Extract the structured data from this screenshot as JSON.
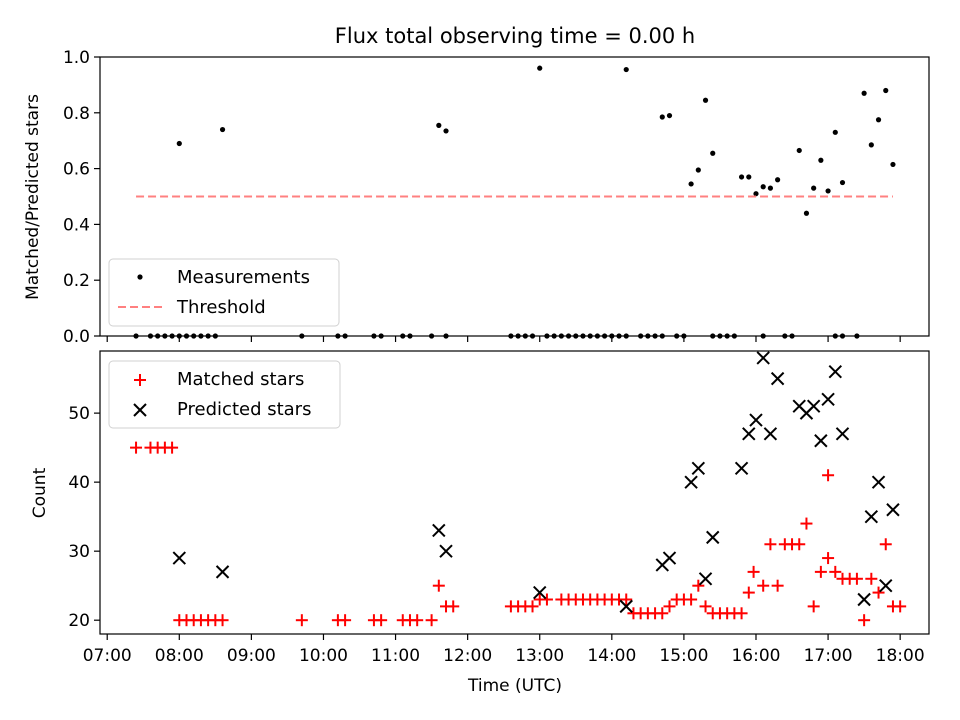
{
  "figure": {
    "title": "Flux total observing time = 0.00 h",
    "xlabel": "Time (UTC)"
  },
  "chart_data": [
    {
      "type": "scatter",
      "ylabel": "Matched/Predicted stars",
      "xlim": [
        "06:54",
        "18:24"
      ],
      "ylim": [
        0,
        1.0
      ],
      "yticks": [
        0.0,
        0.2,
        0.4,
        0.6,
        0.8,
        1.0
      ],
      "ytick_labels": [
        "0.0",
        "0.2",
        "0.4",
        "0.6",
        "0.8",
        "1.0"
      ],
      "legend": {
        "position": "lower-left",
        "entries": [
          "Measurements",
          "Threshold"
        ]
      },
      "series": [
        {
          "name": "Measurements",
          "color": "#000000",
          "marker": "dot",
          "points": [
            [
              "07:24",
              0.0
            ],
            [
              "07:36",
              0.0
            ],
            [
              "07:42",
              0.0
            ],
            [
              "07:48",
              0.0
            ],
            [
              "07:54",
              0.0
            ],
            [
              "08:00",
              0.0
            ],
            [
              "08:06",
              0.0
            ],
            [
              "08:12",
              0.0
            ],
            [
              "08:18",
              0.0
            ],
            [
              "08:24",
              0.0
            ],
            [
              "08:30",
              0.0
            ],
            [
              "09:42",
              0.0
            ],
            [
              "10:12",
              0.0
            ],
            [
              "10:18",
              0.0
            ],
            [
              "10:42",
              0.0
            ],
            [
              "10:48",
              0.0
            ],
            [
              "11:06",
              0.0
            ],
            [
              "11:12",
              0.0
            ],
            [
              "11:30",
              0.0
            ],
            [
              "11:42",
              0.0
            ],
            [
              "12:36",
              0.0
            ],
            [
              "12:42",
              0.0
            ],
            [
              "12:48",
              0.0
            ],
            [
              "12:54",
              0.0
            ],
            [
              "13:06",
              0.0
            ],
            [
              "13:12",
              0.0
            ],
            [
              "13:18",
              0.0
            ],
            [
              "13:24",
              0.0
            ],
            [
              "13:30",
              0.0
            ],
            [
              "13:36",
              0.0
            ],
            [
              "13:42",
              0.0
            ],
            [
              "13:48",
              0.0
            ],
            [
              "13:54",
              0.0
            ],
            [
              "14:00",
              0.0
            ],
            [
              "14:06",
              0.0
            ],
            [
              "14:12",
              0.0
            ],
            [
              "14:24",
              0.0
            ],
            [
              "14:30",
              0.0
            ],
            [
              "14:36",
              0.0
            ],
            [
              "14:42",
              0.0
            ],
            [
              "14:54",
              0.0
            ],
            [
              "15:00",
              0.0
            ],
            [
              "15:24",
              0.0
            ],
            [
              "15:30",
              0.0
            ],
            [
              "15:36",
              0.0
            ],
            [
              "15:42",
              0.0
            ],
            [
              "16:06",
              0.0
            ],
            [
              "16:24",
              0.0
            ],
            [
              "16:30",
              0.0
            ],
            [
              "17:06",
              0.0
            ],
            [
              "17:12",
              0.0
            ],
            [
              "17:24",
              0.0
            ],
            [
              "08:00",
              0.69
            ],
            [
              "08:36",
              0.74
            ],
            [
              "11:36",
              0.755
            ],
            [
              "11:42",
              0.735
            ],
            [
              "13:00",
              0.96
            ],
            [
              "14:12",
              0.955
            ],
            [
              "14:42",
              0.785
            ],
            [
              "14:48",
              0.79
            ],
            [
              "15:06",
              0.545
            ],
            [
              "15:12",
              0.595
            ],
            [
              "15:18",
              0.845
            ],
            [
              "15:24",
              0.655
            ],
            [
              "15:48",
              0.57
            ],
            [
              "15:54",
              0.57
            ],
            [
              "16:00",
              0.51
            ],
            [
              "16:06",
              0.535
            ],
            [
              "16:12",
              0.53
            ],
            [
              "16:18",
              0.56
            ],
            [
              "16:36",
              0.665
            ],
            [
              "16:42",
              0.44
            ],
            [
              "16:48",
              0.53
            ],
            [
              "16:54",
              0.63
            ],
            [
              "17:00",
              0.52
            ],
            [
              "17:06",
              0.73
            ],
            [
              "17:12",
              0.55
            ],
            [
              "17:30",
              0.87
            ],
            [
              "17:36",
              0.685
            ],
            [
              "17:42",
              0.775
            ],
            [
              "17:48",
              0.88
            ],
            [
              "17:54",
              0.615
            ]
          ]
        },
        {
          "name": "Threshold",
          "color": "#ff8080",
          "style": "dashed",
          "points": [
            [
              "07:24",
              0.5
            ],
            [
              "17:54",
              0.5
            ]
          ]
        }
      ]
    },
    {
      "type": "scatter",
      "ylabel": "Count",
      "xlim": [
        "06:54",
        "18:24"
      ],
      "ylim": [
        18,
        59
      ],
      "yticks": [
        20,
        30,
        40,
        50
      ],
      "ytick_labels": [
        "20",
        "30",
        "40",
        "50"
      ],
      "xticks": [
        "07:00",
        "08:00",
        "09:00",
        "10:00",
        "11:00",
        "12:00",
        "13:00",
        "14:00",
        "15:00",
        "16:00",
        "17:00",
        "18:00"
      ],
      "legend": {
        "position": "upper-left",
        "entries": [
          "Matched stars",
          "Predicted stars"
        ]
      },
      "series": [
        {
          "name": "Matched stars",
          "color": "#ff0000",
          "marker": "plus",
          "points": [
            [
              "07:24",
              45
            ],
            [
              "07:36",
              45
            ],
            [
              "07:42",
              45
            ],
            [
              "07:48",
              45
            ],
            [
              "07:54",
              45
            ],
            [
              "08:00",
              20
            ],
            [
              "08:06",
              20
            ],
            [
              "08:12",
              20
            ],
            [
              "08:18",
              20
            ],
            [
              "08:24",
              20
            ],
            [
              "08:30",
              20
            ],
            [
              "08:36",
              20
            ],
            [
              "09:42",
              20
            ],
            [
              "10:12",
              20
            ],
            [
              "10:18",
              20
            ],
            [
              "10:42",
              20
            ],
            [
              "10:48",
              20
            ],
            [
              "11:06",
              20
            ],
            [
              "11:12",
              20
            ],
            [
              "11:18",
              20
            ],
            [
              "11:30",
              20
            ],
            [
              "11:36",
              25
            ],
            [
              "11:42",
              22
            ],
            [
              "11:48",
              22
            ],
            [
              "12:36",
              22
            ],
            [
              "12:42",
              22
            ],
            [
              "12:48",
              22
            ],
            [
              "12:54",
              22
            ],
            [
              "13:00",
              23
            ],
            [
              "13:06",
              23
            ],
            [
              "13:18",
              23
            ],
            [
              "13:24",
              23
            ],
            [
              "13:30",
              23
            ],
            [
              "13:36",
              23
            ],
            [
              "13:42",
              23
            ],
            [
              "13:48",
              23
            ],
            [
              "13:54",
              23
            ],
            [
              "14:00",
              23
            ],
            [
              "14:06",
              23
            ],
            [
              "14:12",
              23
            ],
            [
              "14:18",
              21
            ],
            [
              "14:24",
              21
            ],
            [
              "14:30",
              21
            ],
            [
              "14:36",
              21
            ],
            [
              "14:42",
              21
            ],
            [
              "14:48",
              22
            ],
            [
              "14:54",
              23
            ],
            [
              "15:00",
              23
            ],
            [
              "15:06",
              23
            ],
            [
              "15:12",
              25
            ],
            [
              "15:18",
              22
            ],
            [
              "15:24",
              21
            ],
            [
              "15:30",
              21
            ],
            [
              "15:36",
              21
            ],
            [
              "15:42",
              21
            ],
            [
              "15:48",
              21
            ],
            [
              "15:54",
              24
            ],
            [
              "15:58",
              27
            ],
            [
              "16:06",
              25
            ],
            [
              "16:12",
              31
            ],
            [
              "16:18",
              25
            ],
            [
              "16:24",
              31
            ],
            [
              "16:30",
              31
            ],
            [
              "16:36",
              31
            ],
            [
              "16:42",
              34
            ],
            [
              "16:48",
              22
            ],
            [
              "16:54",
              27
            ],
            [
              "17:00",
              29
            ],
            [
              "17:06",
              27
            ],
            [
              "17:00",
              41
            ],
            [
              "17:12",
              26
            ],
            [
              "17:18",
              26
            ],
            [
              "17:24",
              26
            ],
            [
              "17:36",
              26
            ],
            [
              "17:30",
              20
            ],
            [
              "17:42",
              24
            ],
            [
              "17:48",
              31
            ],
            [
              "17:54",
              22
            ],
            [
              "18:00",
              22
            ]
          ]
        },
        {
          "name": "Predicted stars",
          "color": "#000000",
          "marker": "x",
          "points": [
            [
              "08:00",
              29
            ],
            [
              "08:36",
              27
            ],
            [
              "11:36",
              33
            ],
            [
              "11:42",
              30
            ],
            [
              "13:00",
              24
            ],
            [
              "14:12",
              22
            ],
            [
              "14:42",
              28
            ],
            [
              "14:48",
              29
            ],
            [
              "15:06",
              40
            ],
            [
              "15:12",
              42
            ],
            [
              "15:18",
              26
            ],
            [
              "15:24",
              32
            ],
            [
              "15:48",
              42
            ],
            [
              "15:54",
              47
            ],
            [
              "16:00",
              49
            ],
            [
              "16:06",
              58
            ],
            [
              "16:12",
              47
            ],
            [
              "16:18",
              55
            ],
            [
              "16:36",
              51
            ],
            [
              "16:42",
              50
            ],
            [
              "16:48",
              51
            ],
            [
              "16:54",
              46
            ],
            [
              "17:00",
              52
            ],
            [
              "17:06",
              56
            ],
            [
              "17:12",
              47
            ],
            [
              "17:30",
              23
            ],
            [
              "17:36",
              35
            ],
            [
              "17:42",
              40
            ],
            [
              "17:48",
              25
            ],
            [
              "17:54",
              36
            ]
          ]
        }
      ]
    }
  ]
}
